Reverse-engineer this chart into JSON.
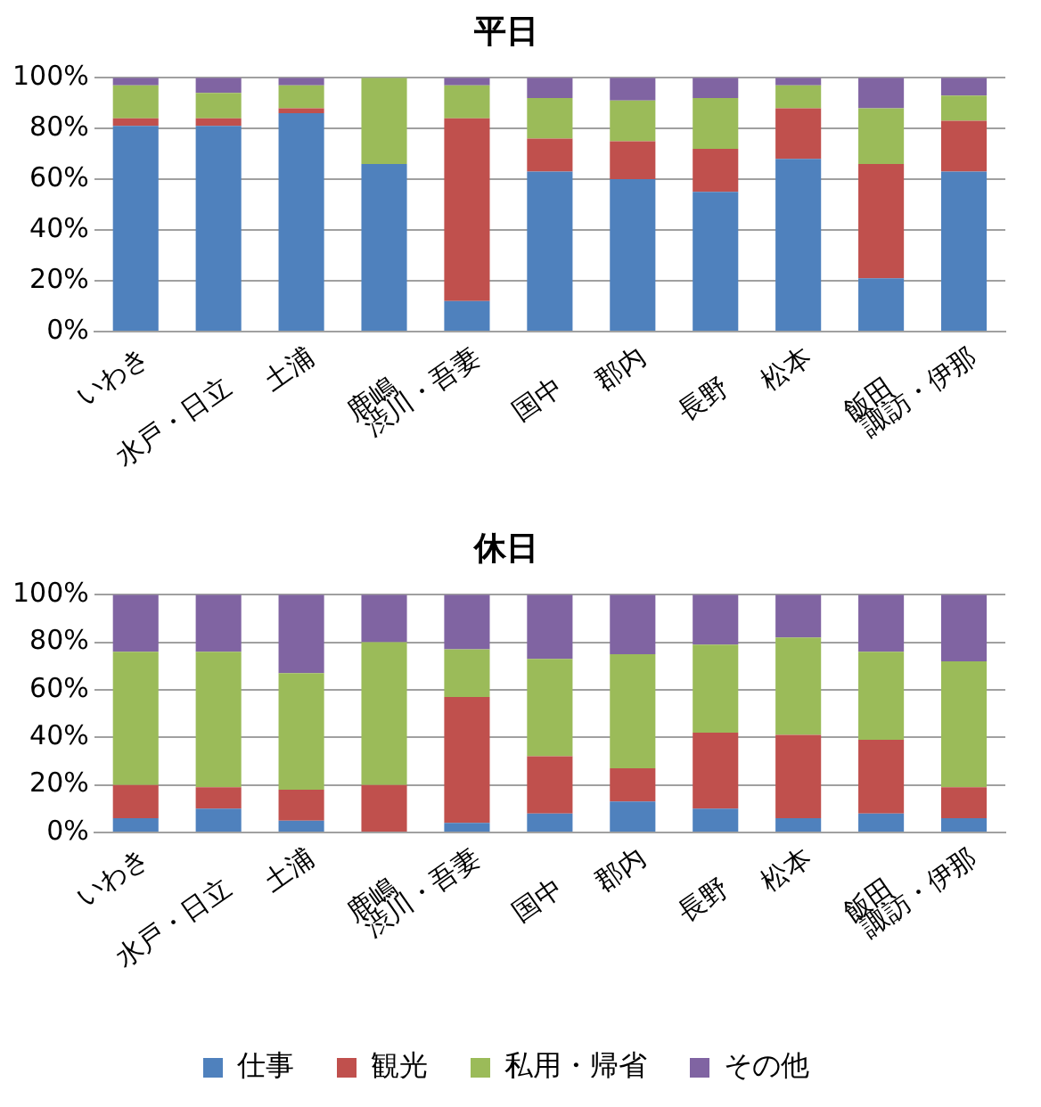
{
  "chart_data": [
    {
      "type": "bar",
      "title": "平日",
      "stacked": true,
      "categories": [
        "いわき",
        "水戸・日立",
        "土浦",
        "鹿嶋",
        "渋川・吾妻",
        "国中",
        "郡内",
        "長野",
        "松本",
        "飯田",
        "諏訪・伊那"
      ],
      "series": [
        {
          "color": "#4f81bd",
          "values": [
            81,
            81,
            86,
            66,
            12,
            63,
            60,
            55,
            68,
            21,
            63
          ]
        },
        {
          "color": "#c0504d",
          "values": [
            3,
            3,
            2,
            0,
            72,
            13,
            15,
            17,
            20,
            45,
            20
          ]
        },
        {
          "color": "#9bbb59",
          "values": [
            13,
            10,
            9,
            34,
            13,
            16,
            16,
            20,
            9,
            22,
            10
          ]
        },
        {
          "color": "#8064a2",
          "values": [
            3,
            6,
            3,
            0,
            3,
            8,
            9,
            8,
            3,
            12,
            7
          ]
        }
      ],
      "ylim": [
        0,
        100
      ],
      "yticks": [
        {
          "value": 0,
          "label": "0%"
        },
        {
          "value": 20,
          "label": "20%"
        },
        {
          "value": 40,
          "label": "40%"
        },
        {
          "value": 60,
          "label": "60%"
        },
        {
          "value": 80,
          "label": "80%"
        },
        {
          "value": 100,
          "label": "100%"
        }
      ],
      "grid": "y",
      "legend": false
    },
    {
      "type": "bar",
      "title": "休日",
      "stacked": true,
      "categories": [
        "いわき",
        "水戸・日立",
        "土浦",
        "鹿嶋",
        "渋川・吾妻",
        "国中",
        "郡内",
        "長野",
        "松本",
        "飯田",
        "諏訪・伊那"
      ],
      "series": [
        {
          "name": "仕事",
          "color": "#4f81bd",
          "values": [
            6,
            10,
            5,
            0,
            4,
            8,
            13,
            10,
            6,
            8,
            6
          ]
        },
        {
          "name": "観光",
          "color": "#c0504d",
          "values": [
            14,
            9,
            13,
            20,
            53,
            24,
            14,
            32,
            35,
            31,
            13
          ]
        },
        {
          "name": "私用・帰省",
          "color": "#9bbb59",
          "values": [
            56,
            57,
            49,
            60,
            20,
            41,
            48,
            37,
            41,
            37,
            53
          ]
        },
        {
          "name": "その他",
          "color": "#8064a2",
          "values": [
            24,
            24,
            33,
            20,
            23,
            27,
            25,
            21,
            18,
            24,
            28
          ]
        }
      ],
      "ylim": [
        0,
        100
      ],
      "yticks": [
        {
          "value": 0,
          "label": "0%"
        },
        {
          "value": 20,
          "label": "20%"
        },
        {
          "value": 40,
          "label": "40%"
        },
        {
          "value": 60,
          "label": "60%"
        },
        {
          "value": 80,
          "label": "80%"
        },
        {
          "value": 100,
          "label": "100%"
        }
      ],
      "grid": "y",
      "legend": "bottom"
    }
  ]
}
